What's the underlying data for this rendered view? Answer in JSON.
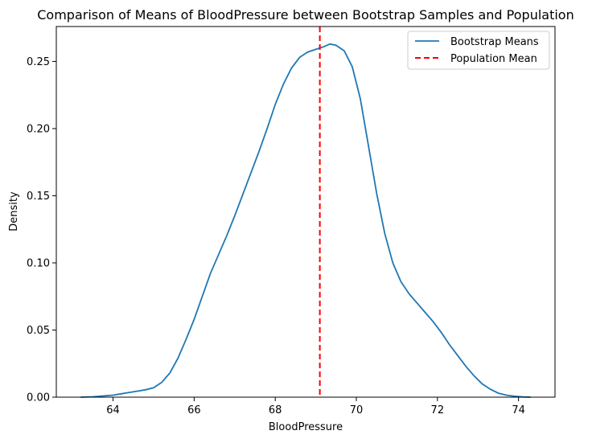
{
  "chart_data": {
    "type": "line",
    "title": "Comparison of Means of BloodPressure between Bootstrap Samples and Population",
    "xlabel": "BloodPressure",
    "ylabel": "Density",
    "xlim": [
      62.6,
      74.9
    ],
    "ylim": [
      0,
      0.276
    ],
    "xticks": [
      64,
      66,
      68,
      70,
      72,
      74
    ],
    "yticks": [
      0.0,
      0.05,
      0.1,
      0.15,
      0.2,
      0.25
    ],
    "ytick_labels": [
      "0.00",
      "0.05",
      "0.10",
      "0.15",
      "0.20",
      "0.25"
    ],
    "grid": false,
    "legend_position": "top-right",
    "series": [
      {
        "name": "Bootstrap Means",
        "color": "#1f77b4",
        "style": "solid",
        "x": [
          63.2,
          63.5,
          63.8,
          64.0,
          64.2,
          64.4,
          64.6,
          64.8,
          65.0,
          65.2,
          65.4,
          65.6,
          65.8,
          66.0,
          66.2,
          66.4,
          66.6,
          66.8,
          67.0,
          67.2,
          67.4,
          67.6,
          67.8,
          68.0,
          68.2,
          68.4,
          68.6,
          68.8,
          69.0,
          69.2,
          69.35,
          69.5,
          69.7,
          69.9,
          70.1,
          70.3,
          70.5,
          70.7,
          70.9,
          71.1,
          71.3,
          71.5,
          71.7,
          71.9,
          72.1,
          72.3,
          72.5,
          72.7,
          72.9,
          73.1,
          73.3,
          73.5,
          73.7,
          73.9,
          74.1,
          74.3
        ],
        "y": [
          0.0,
          0.0003,
          0.001,
          0.0015,
          0.0025,
          0.0035,
          0.0045,
          0.0055,
          0.007,
          0.011,
          0.018,
          0.029,
          0.043,
          0.058,
          0.075,
          0.092,
          0.106,
          0.12,
          0.135,
          0.151,
          0.167,
          0.183,
          0.2,
          0.218,
          0.233,
          0.245,
          0.253,
          0.257,
          0.259,
          0.261,
          0.263,
          0.262,
          0.258,
          0.246,
          0.222,
          0.187,
          0.152,
          0.122,
          0.1,
          0.086,
          0.077,
          0.07,
          0.063,
          0.056,
          0.048,
          0.039,
          0.031,
          0.023,
          0.016,
          0.01,
          0.006,
          0.003,
          0.0015,
          0.0007,
          0.0002,
          0.0
        ]
      },
      {
        "name": "Population Mean",
        "color": "#ff0000",
        "style": "dashed",
        "x_value": 69.1
      }
    ]
  }
}
